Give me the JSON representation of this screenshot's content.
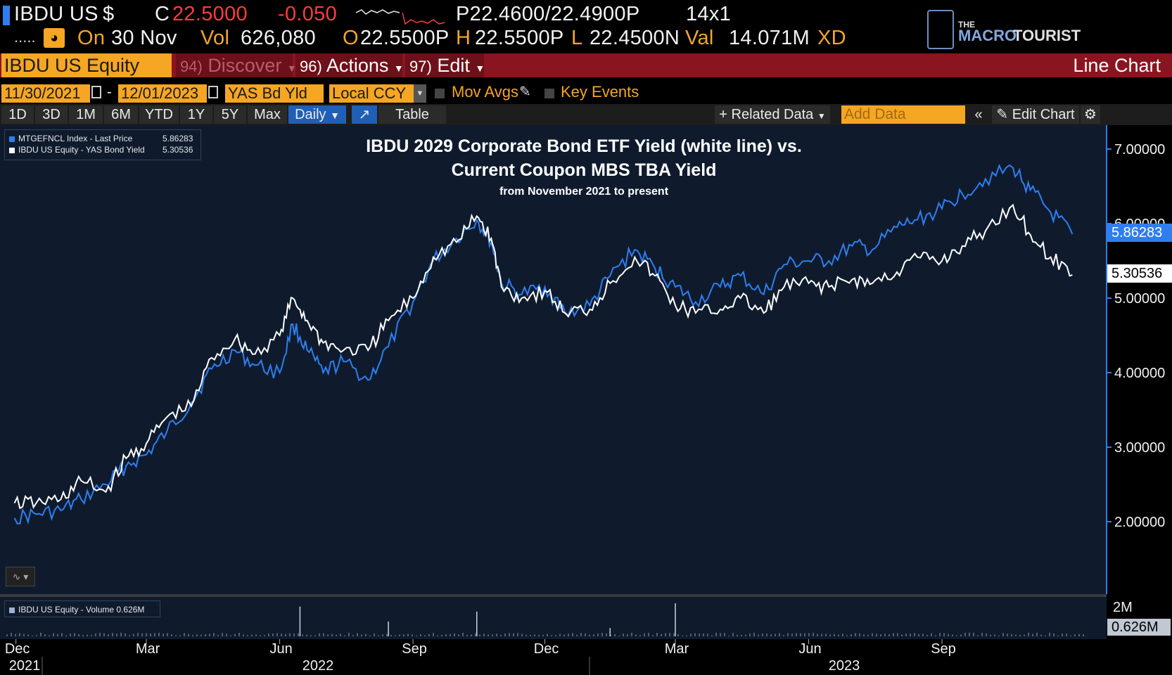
{
  "header": {
    "ticker": "IBDU US",
    "currency_symbol": "$",
    "close_label": "C",
    "close_value": "22.5000",
    "change": "-0.050",
    "bid_ask": "P22.4600/22.4900P",
    "size": "14x1",
    "dots": ".....",
    "on_label": "On",
    "date": "30 Nov",
    "vol_label": "Vol",
    "vol_value": "626,080",
    "open_label": "O",
    "open_value": "22.5500P",
    "high_label": "H",
    "high_value": "22.5500P",
    "low_label": "L",
    "low_value": "22.4500N",
    "val_label": "Val",
    "val_value": "14.071M",
    "xd_label": "XD"
  },
  "watermark": {
    "the": "THE",
    "name1": "MACRO",
    "name2": "TOURIST"
  },
  "menubar": {
    "security": "IBDU US Equity",
    "discover_num": "94)",
    "discover": "Discover",
    "actions_num": "96)",
    "actions": "Actions",
    "edit_num": "97)",
    "edit": "Edit",
    "view_title": "Line Chart"
  },
  "controls": {
    "start_date": "11/30/2021",
    "dash": "-",
    "end_date": "12/01/2023",
    "field": "YAS Bd Yld",
    "currency": "Local CCY",
    "mov_avgs": "Mov Avgs",
    "key_events": "Key Events"
  },
  "toolbar": {
    "periods": [
      "1D",
      "3D",
      "1M",
      "6M",
      "YTD",
      "1Y",
      "5Y",
      "Max"
    ],
    "frequency": "Daily",
    "table": "Table",
    "related_data": "Related Data",
    "add_data_placeholder": "Add Data",
    "edit_chart": "Edit Chart"
  },
  "colors": {
    "blue": "#2f7ef0",
    "white": "#ffffff",
    "amber": "#f5a623",
    "background": "#0f1b2d"
  },
  "chart_data": {
    "type": "line",
    "title_line1": "IBDU 2029 Corporate Bond ETF Yield (white line) vs.",
    "title_line2": "Current Coupon MBS TBA Yield",
    "subtitle": "from November 2021 to present",
    "legend": [
      {
        "label": "MTGEFNCL Index - Last Price",
        "value": "5.86283",
        "color": "#2f7ef0"
      },
      {
        "label": "IBDU US Equity - YAS Bond Yield",
        "value": "5.30536",
        "color": "#ffffff"
      }
    ],
    "ylim": [
      1.45,
      7.3
    ],
    "yticks": [
      "7.00000",
      "6.00000",
      "5.00000",
      "4.00000",
      "3.00000",
      "2.00000"
    ],
    "last_value_labels": [
      "5.86283",
      "5.30536"
    ],
    "x_month_labels": [
      "Dec",
      "Mar",
      "Jun",
      "Sep",
      "Dec",
      "Mar",
      "Jun",
      "Sep"
    ],
    "x_year_labels": [
      "2021",
      "2022",
      "2023"
    ],
    "series": [
      {
        "name": "MTGEFNCL Index - Last Price",
        "color": "#2f7ef0",
        "x": [
          "2021-11-30",
          "2021-12-15",
          "2022-01-01",
          "2022-01-15",
          "2022-02-01",
          "2022-02-15",
          "2022-03-01",
          "2022-03-15",
          "2022-04-01",
          "2022-04-15",
          "2022-05-01",
          "2022-05-15",
          "2022-06-01",
          "2022-06-10",
          "2022-06-20",
          "2022-07-01",
          "2022-07-15",
          "2022-08-01",
          "2022-08-15",
          "2022-09-01",
          "2022-09-15",
          "2022-10-01",
          "2022-10-15",
          "2022-10-25",
          "2022-11-01",
          "2022-11-15",
          "2022-12-01",
          "2022-12-15",
          "2023-01-01",
          "2023-01-15",
          "2023-02-01",
          "2023-02-15",
          "2023-03-01",
          "2023-03-15",
          "2023-04-01",
          "2023-04-15",
          "2023-05-01",
          "2023-05-15",
          "2023-06-01",
          "2023-06-15",
          "2023-07-01",
          "2023-07-15",
          "2023-08-01",
          "2023-08-15",
          "2023-09-01",
          "2023-09-15",
          "2023-10-01",
          "2023-10-20",
          "2023-11-01",
          "2023-11-15",
          "2023-11-30"
        ],
        "values": [
          2.05,
          2.1,
          2.15,
          2.3,
          2.5,
          2.75,
          2.9,
          3.2,
          3.6,
          4.05,
          4.3,
          4.1,
          4.0,
          4.65,
          4.3,
          4.0,
          4.15,
          3.9,
          4.35,
          4.95,
          5.5,
          5.8,
          6.05,
          5.75,
          5.2,
          5.05,
          5.15,
          4.8,
          4.9,
          5.3,
          5.65,
          5.4,
          5.15,
          4.95,
          5.15,
          5.3,
          5.05,
          5.45,
          5.5,
          5.5,
          5.7,
          5.65,
          5.95,
          6.05,
          6.2,
          6.4,
          6.6,
          6.75,
          6.45,
          6.15,
          5.86
        ]
      },
      {
        "name": "IBDU US Equity - YAS Bond Yield",
        "color": "#ffffff",
        "x": [
          "2021-11-30",
          "2021-12-15",
          "2022-01-01",
          "2022-01-15",
          "2022-02-01",
          "2022-02-15",
          "2022-03-01",
          "2022-03-15",
          "2022-04-01",
          "2022-04-15",
          "2022-05-01",
          "2022-05-15",
          "2022-06-01",
          "2022-06-10",
          "2022-06-20",
          "2022-07-01",
          "2022-07-15",
          "2022-08-01",
          "2022-08-15",
          "2022-09-01",
          "2022-09-15",
          "2022-10-01",
          "2022-10-15",
          "2022-10-25",
          "2022-11-01",
          "2022-11-15",
          "2022-12-01",
          "2022-12-15",
          "2023-01-01",
          "2023-01-15",
          "2023-02-01",
          "2023-02-15",
          "2023-03-01",
          "2023-03-15",
          "2023-04-01",
          "2023-04-15",
          "2023-05-01",
          "2023-05-15",
          "2023-06-01",
          "2023-06-15",
          "2023-07-01",
          "2023-07-15",
          "2023-08-01",
          "2023-08-15",
          "2023-09-01",
          "2023-09-15",
          "2023-10-01",
          "2023-10-20",
          "2023-11-01",
          "2023-11-15",
          "2023-11-30"
        ],
        "values": [
          2.25,
          2.25,
          2.3,
          2.55,
          2.4,
          2.85,
          3.05,
          3.4,
          3.55,
          4.2,
          4.45,
          4.25,
          4.5,
          5.0,
          4.7,
          4.4,
          4.3,
          4.3,
          4.7,
          5.0,
          5.55,
          5.75,
          6.1,
          5.8,
          5.15,
          5.0,
          5.1,
          4.8,
          4.85,
          5.2,
          5.55,
          5.3,
          4.9,
          4.8,
          4.85,
          5.0,
          4.8,
          5.15,
          5.2,
          5.15,
          5.25,
          5.2,
          5.35,
          5.55,
          5.5,
          5.7,
          5.9,
          6.25,
          5.85,
          5.55,
          5.31
        ]
      }
    ],
    "volume": {
      "label": "IBDU US Equity - Volume 0.626M",
      "ytick": "2M",
      "last": "0.626M",
      "ylim": [
        0,
        2
      ],
      "spikes": [
        {
          "x": "2022-06-15",
          "value": 1.8
        },
        {
          "x": "2022-10-15",
          "value": 1.5
        },
        {
          "x": "2023-03-01",
          "value": 2.0
        },
        {
          "x": "2022-08-15",
          "value": 0.9
        },
        {
          "x": "2023-01-15",
          "value": 0.5
        }
      ],
      "typical": 0.15
    }
  }
}
